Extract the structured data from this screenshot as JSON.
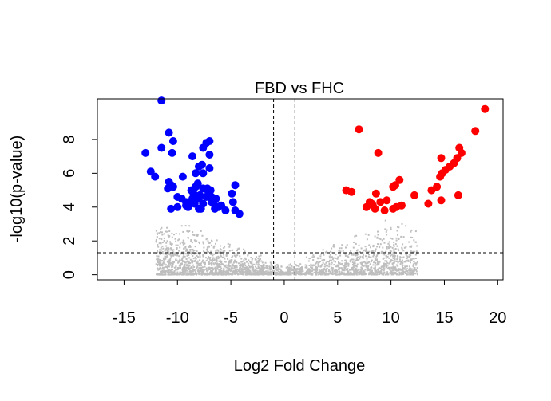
{
  "chart_data": {
    "type": "scatter",
    "title": "FBD vs FHC",
    "xlabel": "Log2 Fold Change",
    "ylabel": "-log10(p-value)",
    "xlim": [
      -17.5,
      20.5
    ],
    "ylim": [
      -0.3,
      10.4
    ],
    "xticks": [
      -15,
      -10,
      -5,
      0,
      5,
      10,
      15,
      20
    ],
    "yticks": [
      0,
      2,
      4,
      6,
      8
    ],
    "grid": false,
    "legend": "none",
    "threshold_lines": {
      "vertical": [
        -1,
        1
      ],
      "horizontal": 1.3
    },
    "colors": {
      "down": "#0000FF",
      "up": "#FF0000",
      "not_significant": "#BEBEBE"
    },
    "series": [
      {
        "points": [
          [
            -11.5,
            10.3
          ],
          [
            -10.8,
            8.4
          ],
          [
            -10.4,
            7.9
          ],
          [
            -11.5,
            7.5
          ],
          [
            -10.5,
            7.2
          ],
          [
            -13.0,
            7.2
          ],
          [
            -12.5,
            6.1
          ],
          [
            -12.1,
            5.8
          ],
          [
            -10.8,
            5.5
          ],
          [
            -10.6,
            5.3
          ],
          [
            -10.4,
            5.2
          ],
          [
            -10.9,
            5.1
          ],
          [
            -10.6,
            3.9
          ],
          [
            -10.0,
            4.0
          ],
          [
            -10.0,
            4.6
          ],
          [
            -9.6,
            4.5
          ],
          [
            -9.5,
            5.8
          ],
          [
            -9.2,
            4.3
          ],
          [
            -9.0,
            4.0
          ],
          [
            -8.8,
            4.3
          ],
          [
            -8.6,
            4.5
          ],
          [
            -8.5,
            4.8
          ],
          [
            -8.3,
            5.2
          ],
          [
            -8.1,
            5.4
          ],
          [
            -8.0,
            4.5
          ],
          [
            -7.9,
            4.7
          ],
          [
            -7.8,
            3.9
          ],
          [
            -7.6,
            4.2
          ],
          [
            -7.3,
            4.6
          ],
          [
            -7.1,
            4.9
          ],
          [
            -6.8,
            4.6
          ],
          [
            -6.6,
            4.2
          ],
          [
            -6.5,
            3.9
          ],
          [
            -6.4,
            4.5
          ],
          [
            -6.2,
            4.0
          ],
          [
            -8.7,
            5.0
          ],
          [
            -8.6,
            7.0
          ],
          [
            -8.3,
            6.0
          ],
          [
            -8.0,
            6.4
          ],
          [
            -7.6,
            7.5
          ],
          [
            -7.3,
            7.8
          ],
          [
            -7.0,
            7.9
          ],
          [
            -7.0,
            7.1
          ],
          [
            -7.7,
            6.5
          ],
          [
            -7.6,
            6.0
          ],
          [
            -7.0,
            6.3
          ],
          [
            -7.2,
            5.1
          ],
          [
            -6.9,
            5.0
          ],
          [
            -6.8,
            4.3
          ],
          [
            -5.9,
            4.1
          ],
          [
            -5.5,
            3.8
          ],
          [
            -4.9,
            4.8
          ],
          [
            -4.8,
            4.3
          ],
          [
            -4.6,
            5.3
          ],
          [
            -4.6,
            3.8
          ],
          [
            -4.2,
            3.6
          ],
          [
            -7.6,
            5.1
          ],
          [
            -8.0,
            3.9
          ],
          [
            -9.2,
            4.1
          ],
          [
            -8.4,
            4.2
          ]
        ]
      },
      {
        "points": [
          [
            18.8,
            9.8
          ],
          [
            17.9,
            8.5
          ],
          [
            16.6,
            7.2
          ],
          [
            16.4,
            7.5
          ],
          [
            16.2,
            6.9
          ],
          [
            15.9,
            6.6
          ],
          [
            15.5,
            6.4
          ],
          [
            15.1,
            6.2
          ],
          [
            14.8,
            6.0
          ],
          [
            14.6,
            5.8
          ],
          [
            14.7,
            6.9
          ],
          [
            14.3,
            5.2
          ],
          [
            13.8,
            5.0
          ],
          [
            13.5,
            4.2
          ],
          [
            14.7,
            4.4
          ],
          [
            16.3,
            4.7
          ],
          [
            12.2,
            4.7
          ],
          [
            11.0,
            4.1
          ],
          [
            10.8,
            5.6
          ],
          [
            10.4,
            5.3
          ],
          [
            10.2,
            5.2
          ],
          [
            9.6,
            4.4
          ],
          [
            9.0,
            4.3
          ],
          [
            8.6,
            4.8
          ],
          [
            8.2,
            4.2
          ],
          [
            7.7,
            4.0
          ],
          [
            7.0,
            8.6
          ],
          [
            8.8,
            7.2
          ],
          [
            6.3,
            4.9
          ],
          [
            5.8,
            5.0
          ],
          [
            8.3,
            4.1
          ],
          [
            8.0,
            4.3
          ],
          [
            10.2,
            3.9
          ],
          [
            9.4,
            3.8
          ],
          [
            8.5,
            3.9
          ],
          [
            10.5,
            4.0
          ]
        ]
      }
    ]
  }
}
